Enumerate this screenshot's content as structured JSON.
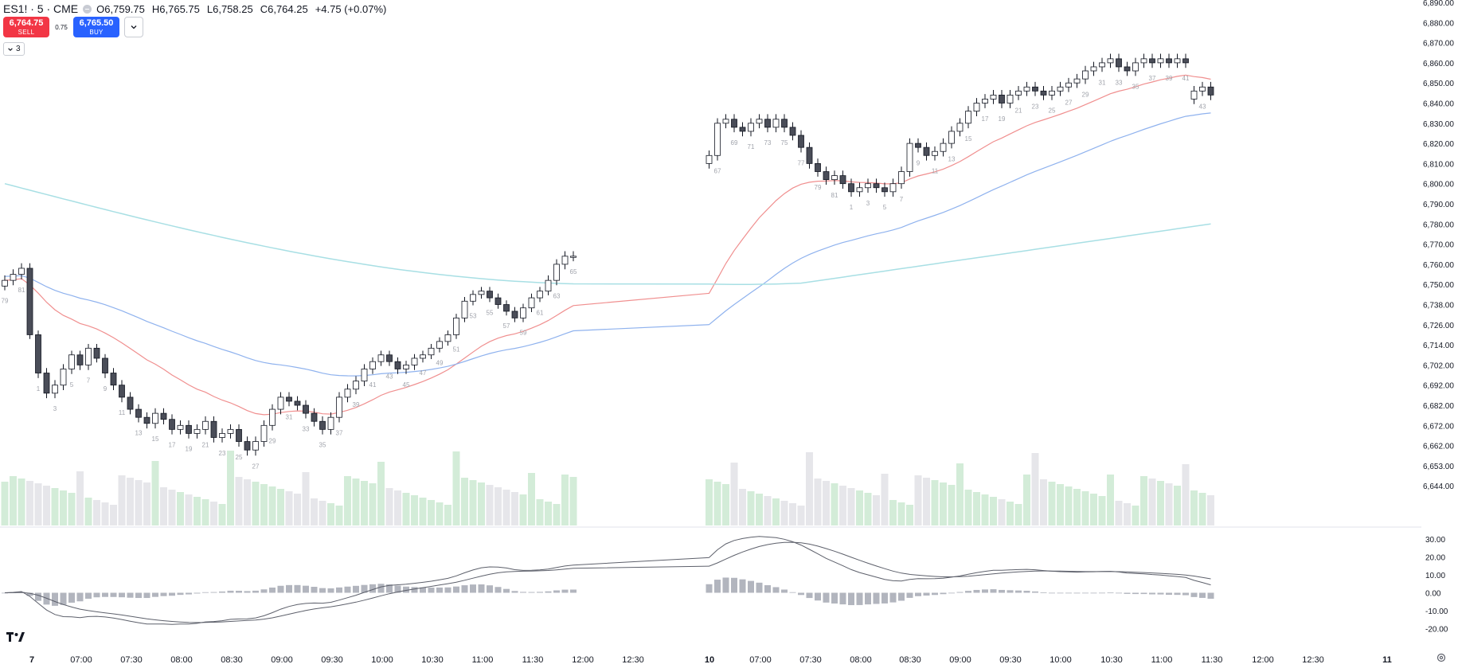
{
  "header": {
    "symbol": "ES1! · 5 · CME",
    "open_label": "O",
    "open": "6,759.75",
    "high_label": "H",
    "high": "6,765.75",
    "low_label": "L",
    "low": "6,758.25",
    "close_label": "C",
    "close": "6,764.25",
    "change": "+4.75 (+0.07%)"
  },
  "trade": {
    "sell_price": "6,764.75",
    "sell_label": "SELL",
    "spread": "0.75",
    "buy_price": "6,765.50",
    "buy_label": "BUY"
  },
  "indicators_toggle": "3",
  "colors": {
    "up": "#ffffff",
    "down": "#4a4d58",
    "wick": "#131722",
    "ema_fast": "#f08f8f",
    "ema_mid": "#8fb2ee",
    "ema_slow": "#a8dfe4",
    "vol_up": "#d3ecd8",
    "vol_down": "#e6e6ea",
    "macd_hist": "#b2b5be",
    "macd_line": "#5d606b"
  },
  "chart_data": {
    "type": "candlestick",
    "price_axis_labels": [
      "6,890.00",
      "6,880.00",
      "6,870.00",
      "6,860.00",
      "6,850.00",
      "6,840.00",
      "6,830.00",
      "6,820.00",
      "6,810.00",
      "6,800.00",
      "6,790.00",
      "6,780.00",
      "6,770.00",
      "6,760.00",
      "6,750.00",
      "6,738.00",
      "6,726.00",
      "6,714.00",
      "6,702.00",
      "6,692.00",
      "6,682.00",
      "6,672.00",
      "6,662.00",
      "6,653.00",
      "6,644.00"
    ],
    "macd_axis_labels": [
      "30.00",
      "20.00",
      "10.00",
      "0.00",
      "-10.00",
      "-20.00"
    ],
    "time_axis_labels": [
      "7",
      "07:00",
      "07:30",
      "08:00",
      "08:30",
      "09:00",
      "09:30",
      "10:00",
      "10:30",
      "11:00",
      "11:30",
      "12:00",
      "12:30",
      "10",
      "07:00",
      "07:30",
      "08:00",
      "08:30",
      "09:00",
      "09:30",
      "10:00",
      "10:30",
      "11:00",
      "11:30",
      "12:00",
      "12:30",
      "11"
    ],
    "bar_count_labels": [
      "79",
      "81",
      "1",
      "3",
      "5",
      "7",
      "9",
      "11",
      "13",
      "15",
      "17",
      "19",
      "21",
      "23",
      "25",
      "27",
      "29",
      "31",
      "33",
      "35",
      "37",
      "39",
      "41",
      "43",
      "45",
      "47",
      "49",
      "51",
      "53",
      "55",
      "57",
      "59",
      "61",
      "63",
      "65",
      "67",
      "69",
      "71",
      "73",
      "75",
      "77",
      "79",
      "81",
      "1",
      "3",
      "5",
      "7",
      "9",
      "11",
      "13",
      "15",
      "17",
      "19",
      "21",
      "23",
      "25",
      "27",
      "29",
      "31",
      "33",
      "35",
      "37",
      "39",
      "41",
      "43",
      "45",
      "47",
      "49",
      "51",
      "53",
      "55",
      "57",
      "59",
      "61",
      "63",
      "65",
      "67",
      "69",
      "71",
      "73",
      "75",
      "77",
      "79",
      "81",
      "1",
      "3"
    ],
    "closes_day1": [
      6752,
      6755,
      6758,
      6720,
      6698,
      6688,
      6692,
      6700,
      6708,
      6702,
      6712,
      6706,
      6698,
      6692,
      6686,
      6680,
      6676,
      6673,
      6678,
      6675,
      6670,
      6672,
      6668,
      6670,
      6674,
      6666,
      6668,
      6670,
      6664,
      6660,
      6664,
      6672,
      6680,
      6686,
      6684,
      6682,
      6678,
      6674,
      6670,
      6676,
      6686,
      6690,
      6694,
      6700,
      6704,
      6708,
      6704,
      6700,
      6702,
      6706,
      6708,
      6712,
      6716,
      6720,
      6730,
      6740,
      6744,
      6746,
      6742,
      6738,
      6734,
      6730,
      6736,
      6742,
      6746,
      6752,
      6760,
      6764,
      6764
    ],
    "closes_day2": [
      6814,
      6830,
      6832,
      6828,
      6826,
      6830,
      6832,
      6828,
      6832,
      6828,
      6824,
      6818,
      6810,
      6806,
      6802,
      6804,
      6800,
      6796,
      6798,
      6800,
      6798,
      6796,
      6800,
      6806,
      6820,
      6818,
      6814,
      6816,
      6820,
      6826,
      6830,
      6836,
      6840,
      6842,
      6844,
      6840,
      6844,
      6846,
      6848,
      6846,
      6844,
      6846,
      6848,
      6850,
      6852,
      6856,
      6858,
      6860,
      6862,
      6858,
      6856,
      6860,
      6862,
      6860,
      6862,
      6860,
      6862,
      6860
    ],
    "closes_day3": [
      6846,
      6848,
      6844
    ]
  }
}
